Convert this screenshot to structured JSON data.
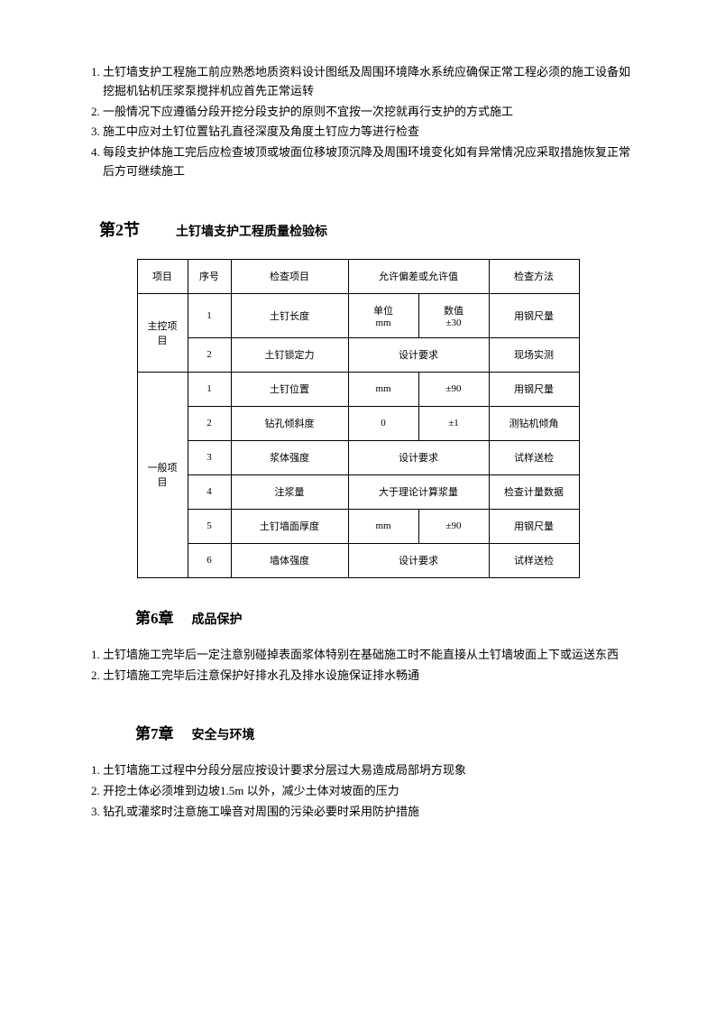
{
  "list1": {
    "items": [
      "土钉墙支护工程施工前应熟悉地质资料设计图纸及周围环境降水系统应确保正常工程必须的施工设备如挖掘机钻机压浆泵搅拌机应首先正常运转",
      "一般情况下应遵循分段开挖分段支护的原则不宜按一次挖就再行支护的方式施工",
      "施工中应对土钉位置钻孔直径深度及角度土钉应力等进行检查",
      "每段支护体施工完后应检查坡顶或坡面位移坡顶沉降及周围环境变化如有异常情况应采取措施恢复正常后方可继续施工"
    ]
  },
  "section2": {
    "num": "第2节",
    "title": "土钉墙支护工程质量检验标"
  },
  "table": {
    "header": {
      "xiangmu": "项目",
      "xuhao": "序号",
      "jiancha": "检查项目",
      "yunxu": "允许偏差或允许值",
      "fangfa": "检查方法"
    },
    "zhukong_label": "主控项目",
    "yiban_label": "一般项目",
    "rows": [
      {
        "xuhao": "1",
        "jiancha": "土钉长度",
        "danwei_label": "单位",
        "danwei": "mm",
        "shuzhi_label": "数值",
        "shuzhi": "±30",
        "fangfa": "用钢尺量"
      },
      {
        "xuhao": "2",
        "jiancha": "土钉锁定力",
        "merge": "设计要求",
        "fangfa": "现场实测"
      },
      {
        "xuhao": "1",
        "jiancha": "土钉位置",
        "danwei": "mm",
        "shuzhi": "±90",
        "fangfa": "用钢尺量"
      },
      {
        "xuhao": "2",
        "jiancha": "钻孔倾斜度",
        "danwei": "0",
        "shuzhi": "±1",
        "fangfa": "测钻机倾角"
      },
      {
        "xuhao": "3",
        "jiancha": "浆体强度",
        "merge": "设计要求",
        "fangfa": "试样送检"
      },
      {
        "xuhao": "4",
        "jiancha": "注浆量",
        "merge": "大于理论计算浆量",
        "fangfa": "检查计量数据"
      },
      {
        "xuhao": "5",
        "jiancha": "土钉墙面厚度",
        "danwei": "mm",
        "shuzhi": "±90",
        "fangfa": "用钢尺量"
      },
      {
        "xuhao": "6",
        "jiancha": "墙体强度",
        "merge": "设计要求",
        "fangfa": "试样送检"
      }
    ]
  },
  "chapter6": {
    "num": "第6章",
    "title": "成品保护"
  },
  "list6": {
    "items": [
      "土钉墙施工完毕后一定注意别碰掉表面浆体特别在基础施工时不能直接从土钉墙坡面上下或运送东西",
      "土钉墙施工完毕后注意保护好排水孔及排水设施保证排水畅通"
    ]
  },
  "chapter7": {
    "num": "第7章",
    "title": "安全与环境"
  },
  "list7": {
    "items": [
      "土钉墙施工过程中分段分层应按设计要求分层过大易造成局部坍方现象",
      "开挖土体必须堆到边坡1.5m 以外，减少土体对坡面的压力",
      "钻孔或灌浆时注意施工噪音对周围的污染必要时采用防护措施"
    ]
  }
}
